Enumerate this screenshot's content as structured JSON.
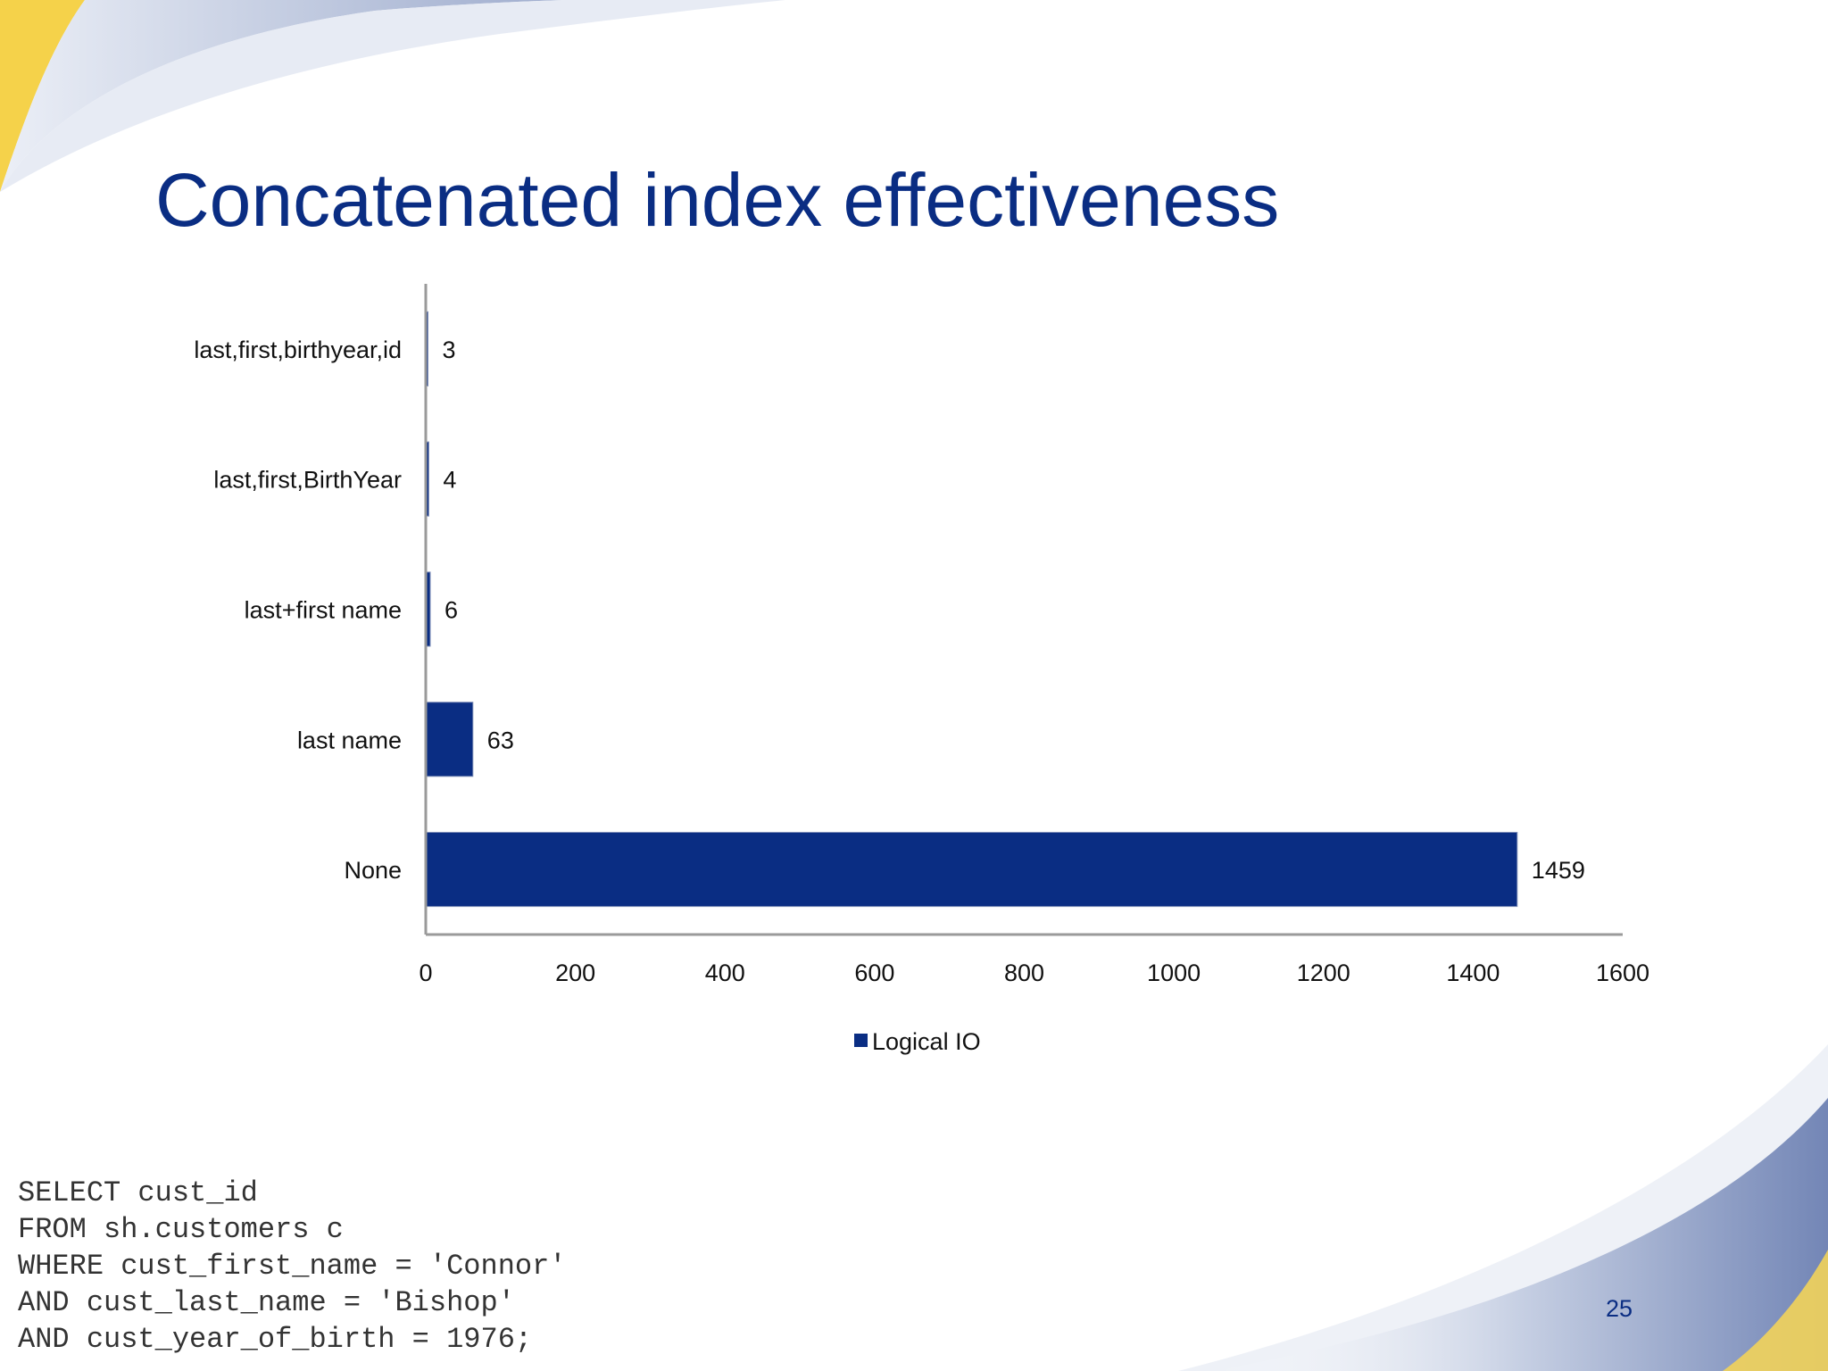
{
  "slide": {
    "title": "Concatenated index effectiveness",
    "page_number": "25",
    "sql_lines": [
      "SELECT cust_id",
      "FROM sh.customers c",
      "WHERE cust_first_name = 'Connor'",
      "AND cust_last_name = 'Bishop'",
      "AND cust_year_of_birth = 1976;"
    ]
  },
  "colors": {
    "title": "#0a2d83",
    "bar": "#0a2d83",
    "axis": "#9a9a9a",
    "swoosh_blue": "#8fa0c6",
    "swoosh_yellow": "#f5d24a"
  },
  "chart_data": {
    "type": "bar",
    "orientation": "horizontal",
    "title": "",
    "categories": [
      "last,first,birthyear,id",
      "last,first,BirthYear",
      "last+first name",
      "last name",
      "None"
    ],
    "series": [
      {
        "name": "Logical IO",
        "values": [
          3,
          4,
          6,
          63,
          1459
        ]
      }
    ],
    "data_labels": [
      "3",
      "4",
      "6",
      "63",
      "1459"
    ],
    "x_ticks": [
      "0",
      "200",
      "400",
      "600",
      "800",
      "1000",
      "1200",
      "1400",
      "1600"
    ],
    "xlim": [
      0,
      1600
    ],
    "xlabel": "",
    "ylabel": "",
    "grid": false,
    "legend": {
      "position": "bottom",
      "entries": [
        "Logical IO"
      ]
    }
  }
}
